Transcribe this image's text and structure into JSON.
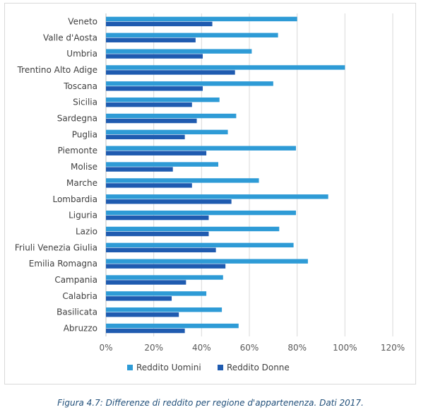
{
  "chart_data": {
    "type": "bar",
    "orientation": "horizontal",
    "categories": [
      "Veneto",
      "Valle d'Aosta",
      "Umbria",
      "Trentino Alto Adige",
      "Toscana",
      "Sicilia",
      "Sardegna",
      "Puglia",
      "Piemonte",
      "Molise",
      "Marche",
      "Lombardia",
      "Liguria",
      "Lazio",
      "Friuli Venezia Giulia",
      "Emilia Romagna",
      "Campania",
      "Calabria",
      "Basilicata",
      "Abruzzo"
    ],
    "series": [
      {
        "name": "Reddito Uomini",
        "color": "#2e9bd6",
        "values": [
          0.8,
          0.72,
          0.61,
          1.0,
          0.7,
          0.475,
          0.545,
          0.51,
          0.795,
          0.47,
          0.64,
          0.93,
          0.795,
          0.725,
          0.785,
          0.845,
          0.49,
          0.42,
          0.485,
          0.555
        ]
      },
      {
        "name": "Reddito Donne",
        "color": "#1f5bb0",
        "values": [
          0.445,
          0.375,
          0.405,
          0.54,
          0.405,
          0.36,
          0.38,
          0.33,
          0.42,
          0.28,
          0.36,
          0.525,
          0.43,
          0.43,
          0.46,
          0.5,
          0.335,
          0.275,
          0.305,
          0.33
        ]
      }
    ],
    "xlim": [
      0,
      1.2
    ],
    "xticks": [
      "0%",
      "20%",
      "40%",
      "60%",
      "80%",
      "100%",
      "120%"
    ],
    "grid": "vertical",
    "legend": "bottom"
  },
  "caption": "Figura 4.7: Differenze di reddito per regione d'appartenenza. Dati 2017."
}
